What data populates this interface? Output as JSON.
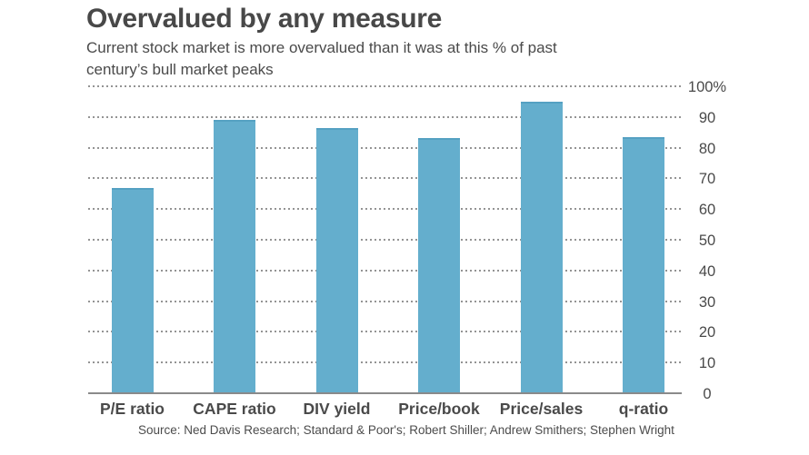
{
  "colors": {
    "bar_fill": "#64aecd",
    "bar_top_edge": "#55a1c2",
    "text": "#4a4a4a",
    "gridline": "#949494",
    "axis_line": "#8a8a8a"
  },
  "chart_data": {
    "type": "bar",
    "title": "Overvalued by any measure",
    "subtitle_lines": [
      "Current stock market is more overvalued than it was at this % of past",
      "century’s bull market peaks"
    ],
    "categories": [
      "P/E ratio",
      "CAPE ratio",
      "DIV yield",
      "Price/book",
      "Price/sales",
      "q-ratio"
    ],
    "values": [
      67,
      89,
      86.5,
      83,
      95,
      83.5
    ],
    "xlabel": "",
    "ylabel": "",
    "ylim": [
      0,
      100
    ],
    "ytick_step": 10,
    "ytick_labels_top_down": [
      "100%",
      "90",
      "80",
      "70",
      "60",
      "50",
      "40",
      "30",
      "20",
      "10",
      "0"
    ],
    "yaxis_side": "right",
    "grid": "horizontal-dotted",
    "legend": "none",
    "source": "Source: Ned Davis Research; Standard & Poor's; Robert Shiller; Andrew Smithers; Stephen Wright"
  }
}
